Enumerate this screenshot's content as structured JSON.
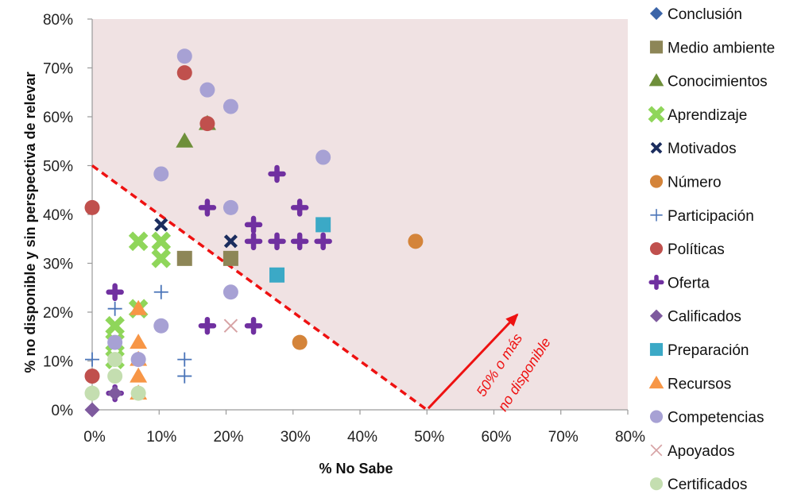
{
  "chart_data": {
    "type": "scatter",
    "xlabel": "% No Sabe",
    "ylabel": "% no disponible y sin perspectiva de relevar",
    "xlim": [
      0,
      80
    ],
    "ylim": [
      0,
      80
    ],
    "x_ticks": [
      "0%",
      "10%",
      "20%",
      "30%",
      "40%",
      "50%",
      "60%",
      "70%",
      "80%"
    ],
    "y_ticks": [
      "0%",
      "10%",
      "20%",
      "30%",
      "40%",
      "50%",
      "60%",
      "70%",
      "80%"
    ],
    "grid": false,
    "legend_position": "right",
    "shaded_region_color": "#f0e2e3",
    "threshold_line": {
      "from": [
        0,
        50
      ],
      "to": [
        50,
        0
      ],
      "color": "#ee1111",
      "style": "dashed"
    },
    "annotation": {
      "line1": "50% o más",
      "line2": "no disponible",
      "color": "#ee1111"
    },
    "series": [
      {
        "name": "Conclusión",
        "marker": "diamond",
        "color": "#3a64a8",
        "points": []
      },
      {
        "name": "Medio ambiente",
        "marker": "square",
        "color": "#8d8657",
        "points": [
          [
            13.8,
            31
          ],
          [
            20.7,
            31
          ]
        ]
      },
      {
        "name": "Conocimientos",
        "marker": "triangle",
        "color": "#6e8f3a",
        "points": [
          [
            13.8,
            55
          ],
          [
            17.2,
            58.6
          ]
        ]
      },
      {
        "name": "Aprendizaje",
        "marker": "xthick",
        "color": "#8fd65a",
        "points": [
          [
            3.4,
            17.2
          ],
          [
            3.4,
            13.8
          ],
          [
            3.4,
            10.3
          ],
          [
            6.9,
            34.5
          ],
          [
            6.9,
            20.7
          ],
          [
            10.3,
            34.5
          ],
          [
            10.3,
            31
          ]
        ]
      },
      {
        "name": "Motivados",
        "marker": "xdark",
        "color": "#1b2d5e",
        "points": [
          [
            10.3,
            37.9
          ],
          [
            20.7,
            34.5
          ]
        ]
      },
      {
        "name": "Número",
        "marker": "circle",
        "color": "#d4843a",
        "points": [
          [
            31,
            13.8
          ],
          [
            48.3,
            34.5
          ]
        ]
      },
      {
        "name": "Participación",
        "marker": "plusthin",
        "color": "#4a74b8",
        "points": [
          [
            0,
            10.3
          ],
          [
            3.4,
            20.7
          ],
          [
            10.3,
            24.1
          ],
          [
            13.8,
            10.3
          ],
          [
            13.8,
            6.9
          ]
        ]
      },
      {
        "name": "Políticas",
        "marker": "circle",
        "color": "#c0504d",
        "points": [
          [
            0,
            41.4
          ],
          [
            0,
            6.9
          ],
          [
            13.8,
            69
          ],
          [
            17.2,
            58.6
          ]
        ]
      },
      {
        "name": "Oferta",
        "marker": "plusthick",
        "color": "#7030a0",
        "points": [
          [
            3.4,
            24.1
          ],
          [
            3.4,
            3.4
          ],
          [
            17.2,
            41.4
          ],
          [
            17.2,
            17.2
          ],
          [
            24.1,
            37.9
          ],
          [
            24.1,
            34.5
          ],
          [
            24.1,
            17.2
          ],
          [
            27.6,
            48.3
          ],
          [
            27.6,
            34.5
          ],
          [
            31,
            41.4
          ],
          [
            31,
            34.5
          ],
          [
            34.5,
            34.5
          ]
        ]
      },
      {
        "name": "Calificados",
        "marker": "diamond",
        "color": "#7e5a9e",
        "points": [
          [
            0,
            0
          ],
          [
            3.4,
            3.4
          ]
        ]
      },
      {
        "name": "Preparación",
        "marker": "square",
        "color": "#3ba9c6",
        "points": [
          [
            27.6,
            27.6
          ],
          [
            34.5,
            37.9
          ]
        ]
      },
      {
        "name": "Recursos",
        "marker": "triangle",
        "color": "#f79646",
        "points": [
          [
            6.9,
            20.7
          ],
          [
            6.9,
            13.8
          ],
          [
            6.9,
            10.3
          ],
          [
            6.9,
            6.9
          ],
          [
            6.9,
            3.4
          ]
        ]
      },
      {
        "name": "Competencias",
        "marker": "circle",
        "color": "#a7a1d4",
        "points": [
          [
            3.4,
            13.8
          ],
          [
            6.9,
            10.3
          ],
          [
            10.3,
            48.3
          ],
          [
            10.3,
            17.2
          ],
          [
            13.8,
            72.4
          ],
          [
            17.2,
            65.5
          ],
          [
            20.7,
            62.1
          ],
          [
            20.7,
            41.4
          ],
          [
            20.7,
            24.1
          ],
          [
            34.5,
            51.7
          ]
        ]
      },
      {
        "name": "Apoyados",
        "marker": "xthin",
        "color": "#d7a3a5",
        "points": [
          [
            20.7,
            17.2
          ]
        ]
      },
      {
        "name": "Certificados",
        "marker": "circle",
        "color": "#c4deb0",
        "points": [
          [
            0,
            3.4
          ],
          [
            3.4,
            10.3
          ],
          [
            3.4,
            6.9
          ],
          [
            6.9,
            3.4
          ]
        ]
      }
    ]
  }
}
